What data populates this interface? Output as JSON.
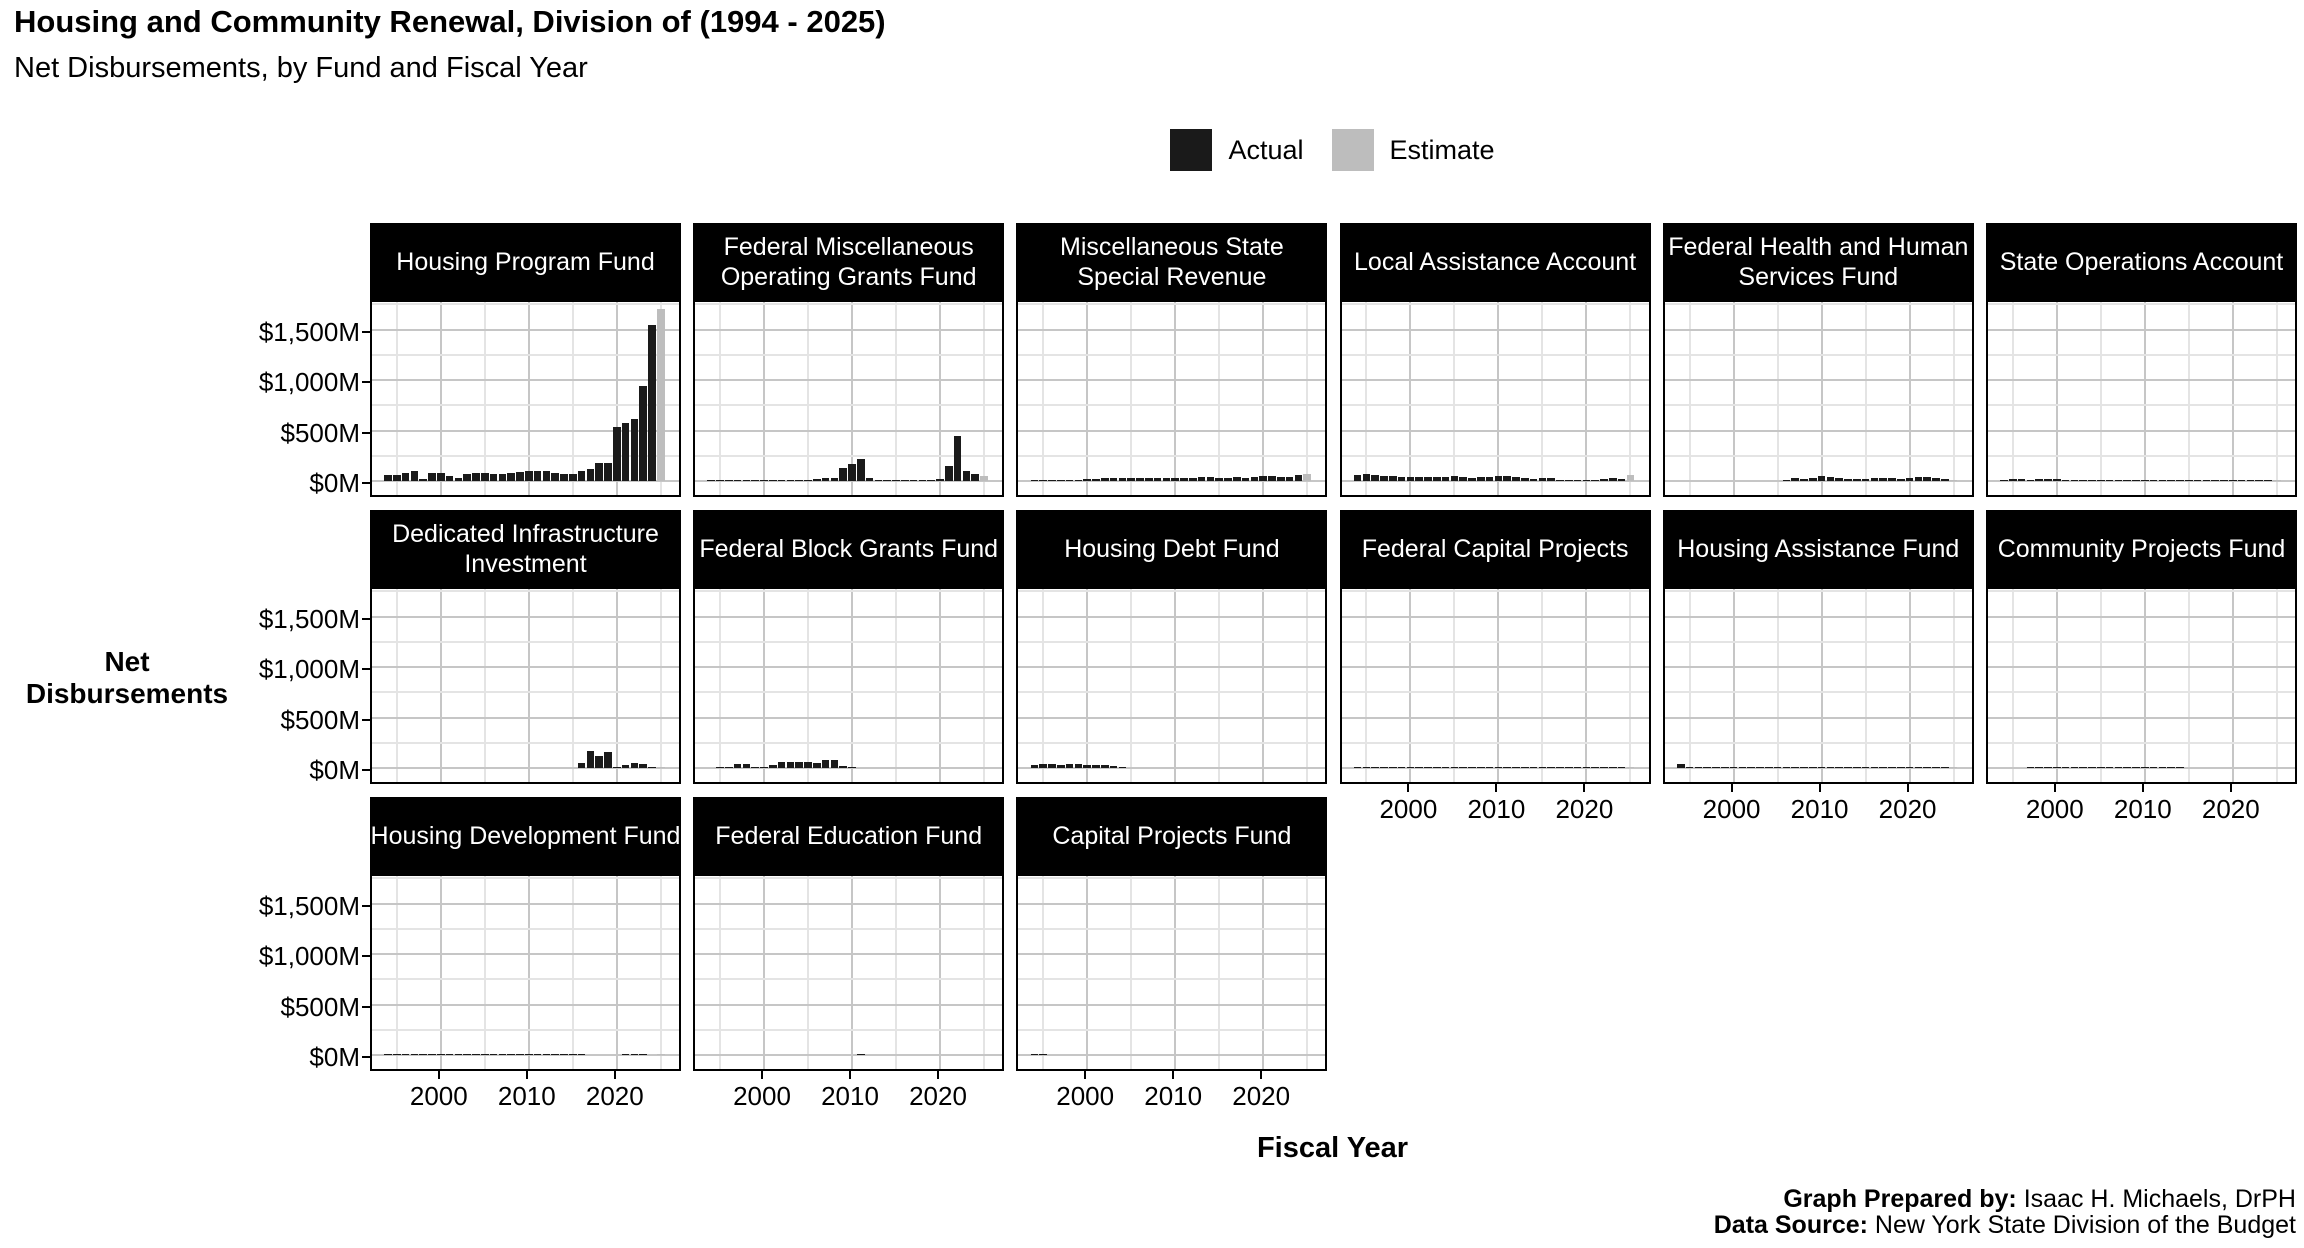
{
  "header": {
    "title": "Housing and Community Renewal, Division of (1994 - 2025)",
    "subtitle": "Net Disbursements, by Fund and Fiscal Year"
  },
  "legend": {
    "items": [
      {
        "label": "Actual",
        "color": "#1a1a1a"
      },
      {
        "label": "Estimate",
        "color": "#bdbdbd"
      }
    ]
  },
  "axes": {
    "y_title": "Net Disbursements",
    "x_title": "Fiscal Year"
  },
  "footer": {
    "prepared_label": "Graph Prepared by:",
    "prepared_value": " Isaac H. Michaels, DrPH",
    "source_label": "Data Source:",
    "source_value": " New York State Division of the Budget"
  },
  "chart_data": {
    "type": "bar",
    "title": "Housing and Community Renewal, Division of (1994 - 2025)",
    "subtitle": "Net Disbursements, by Fund and Fiscal Year",
    "xlabel": "Fiscal Year",
    "ylabel": "Net Disbursements",
    "y_unit": "millions of dollars",
    "ylim": [
      0,
      1790
    ],
    "grid": "on",
    "legend_position": "top",
    "estimate_year": 2025,
    "series_colors": {
      "actual": "#1a1a1a",
      "estimate": "#bdbdbd"
    },
    "x_years": [
      1994,
      1995,
      1996,
      1997,
      1998,
      1999,
      2000,
      2001,
      2002,
      2003,
      2004,
      2005,
      2006,
      2007,
      2008,
      2009,
      2010,
      2011,
      2012,
      2013,
      2014,
      2015,
      2016,
      2017,
      2018,
      2019,
      2020,
      2021,
      2022,
      2023,
      2024,
      2025
    ],
    "x_tick_years": [
      2000,
      2010,
      2020
    ],
    "x_minor_years": [
      1995,
      2005,
      2015,
      2025
    ],
    "y_ticks": [
      {
        "value": 0,
        "label": "$0M"
      },
      {
        "value": 500,
        "label": "$500M"
      },
      {
        "value": 1000,
        "label": "$1,000M"
      },
      {
        "value": 1500,
        "label": "$1,500M"
      }
    ],
    "y_minor": [
      250,
      750,
      1250,
      1750
    ],
    "facets": [
      {
        "name": "Housing Program Fund",
        "values": [
          55,
          62,
          83,
          96,
          20,
          83,
          75,
          45,
          28,
          66,
          83,
          75,
          73,
          73,
          83,
          93,
          100,
          100,
          100,
          83,
          66,
          66,
          100,
          115,
          175,
          175,
          540,
          580,
          610,
          945,
          1550,
          1710
        ]
      },
      {
        "name": "Federal Miscellaneous Operating Grants Fund",
        "values": [
          5,
          10,
          12,
          10,
          15,
          15,
          15,
          15,
          12,
          12,
          12,
          15,
          20,
          30,
          30,
          130,
          165,
          215,
          25,
          15,
          15,
          15,
          15,
          12,
          15,
          15,
          20,
          150,
          450,
          100,
          65,
          50
        ]
      },
      {
        "name": "Miscellaneous State Special Revenue",
        "values": [
          8,
          8,
          8,
          8,
          8,
          10,
          18,
          20,
          25,
          28,
          25,
          28,
          28,
          28,
          28,
          30,
          33,
          33,
          33,
          35,
          35,
          33,
          33,
          35,
          30,
          40,
          45,
          45,
          42,
          42,
          55,
          68
        ]
      },
      {
        "name": "Local Assistance Account",
        "values": [
          55,
          65,
          60,
          48,
          45,
          40,
          42,
          42,
          38,
          40,
          42,
          45,
          38,
          32,
          35,
          38,
          45,
          45,
          38,
          28,
          22,
          30,
          28,
          12,
          4,
          2,
          2,
          2,
          20,
          28,
          22,
          60
        ]
      },
      {
        "name": "Federal Health and Human Services Fund",
        "values": [
          0,
          0,
          0,
          0,
          0,
          0,
          0,
          0,
          0,
          0,
          0,
          0,
          15,
          25,
          20,
          30,
          50,
          35,
          25,
          20,
          20,
          20,
          25,
          30,
          25,
          20,
          30,
          35,
          35,
          30,
          20,
          10
        ]
      },
      {
        "name": "State Operations Account",
        "values": [
          15,
          18,
          18,
          15,
          20,
          20,
          18,
          15,
          15,
          15,
          15,
          15,
          15,
          15,
          12,
          8,
          8,
          8,
          5,
          3,
          2,
          2,
          2,
          2,
          2,
          2,
          2,
          2,
          2,
          2,
          2,
          3
        ]
      },
      {
        "name": "Dedicated Infrastructure Investment",
        "values": [
          0,
          0,
          0,
          0,
          0,
          0,
          0,
          0,
          0,
          0,
          0,
          0,
          0,
          0,
          0,
          0,
          0,
          0,
          0,
          0,
          0,
          0,
          50,
          165,
          115,
          160,
          8,
          25,
          50,
          40,
          2,
          15
        ]
      },
      {
        "name": "Federal Block Grants Fund",
        "values": [
          0,
          5,
          15,
          40,
          40,
          15,
          10,
          25,
          60,
          60,
          60,
          55,
          50,
          75,
          75,
          20,
          10,
          0,
          0,
          0,
          0,
          0,
          0,
          0,
          0,
          0,
          0,
          0,
          0,
          0,
          0,
          0
        ]
      },
      {
        "name": "Housing Debt Fund",
        "values": [
          30,
          35,
          35,
          30,
          35,
          35,
          30,
          30,
          25,
          20,
          8,
          0,
          0,
          0,
          0,
          0,
          0,
          0,
          0,
          0,
          0,
          0,
          0,
          0,
          0,
          0,
          0,
          0,
          0,
          0,
          0,
          0
        ]
      },
      {
        "name": "Federal Capital Projects",
        "values": [
          10,
          12,
          8,
          5,
          4,
          3,
          2,
          2,
          2,
          2,
          2,
          2,
          2,
          2,
          2,
          2,
          2,
          2,
          2,
          2,
          2,
          2,
          2,
          2,
          2,
          2,
          1,
          1,
          1,
          1,
          1,
          2
        ]
      },
      {
        "name": "Housing Assistance Fund",
        "values": [
          35,
          12,
          4,
          2,
          1,
          1,
          1,
          1,
          1,
          1,
          1,
          1,
          1,
          1,
          5,
          10,
          2,
          2,
          8,
          15,
          1,
          1,
          1,
          1,
          1,
          1,
          2,
          2,
          2,
          2,
          1,
          1
        ]
      },
      {
        "name": "Community Projects Fund",
        "values": [
          0,
          0,
          0,
          1,
          1,
          1,
          1,
          1,
          1,
          1,
          1,
          1,
          1,
          1,
          1,
          1,
          1,
          1,
          1,
          1,
          1,
          0,
          0,
          0,
          0,
          0,
          0,
          0,
          0,
          0,
          0,
          0
        ]
      },
      {
        "name": "Housing Development Fund",
        "values": [
          2,
          8,
          1,
          1,
          1,
          1,
          1,
          1,
          1,
          1,
          1,
          1,
          1,
          1,
          1,
          1,
          1,
          1,
          1,
          1,
          1,
          1,
          1,
          0,
          0,
          0,
          0,
          5,
          5,
          1,
          0,
          2
        ]
      },
      {
        "name": "Federal Education Fund",
        "values": [
          0,
          0,
          0,
          0,
          0,
          0,
          0,
          0,
          0,
          0,
          0,
          0,
          0,
          0,
          0,
          0,
          0,
          8,
          0,
          0,
          0,
          0,
          0,
          0,
          0,
          0,
          0,
          0,
          0,
          0,
          0,
          0
        ]
      },
      {
        "name": "Capital Projects Fund",
        "values": [
          10,
          4,
          0,
          0,
          0,
          0,
          0,
          0,
          0,
          0,
          0,
          0,
          0,
          0,
          0,
          0,
          0,
          0,
          0,
          0,
          0,
          0,
          0,
          0,
          0,
          0,
          0,
          0,
          0,
          0,
          0,
          0
        ]
      }
    ]
  }
}
